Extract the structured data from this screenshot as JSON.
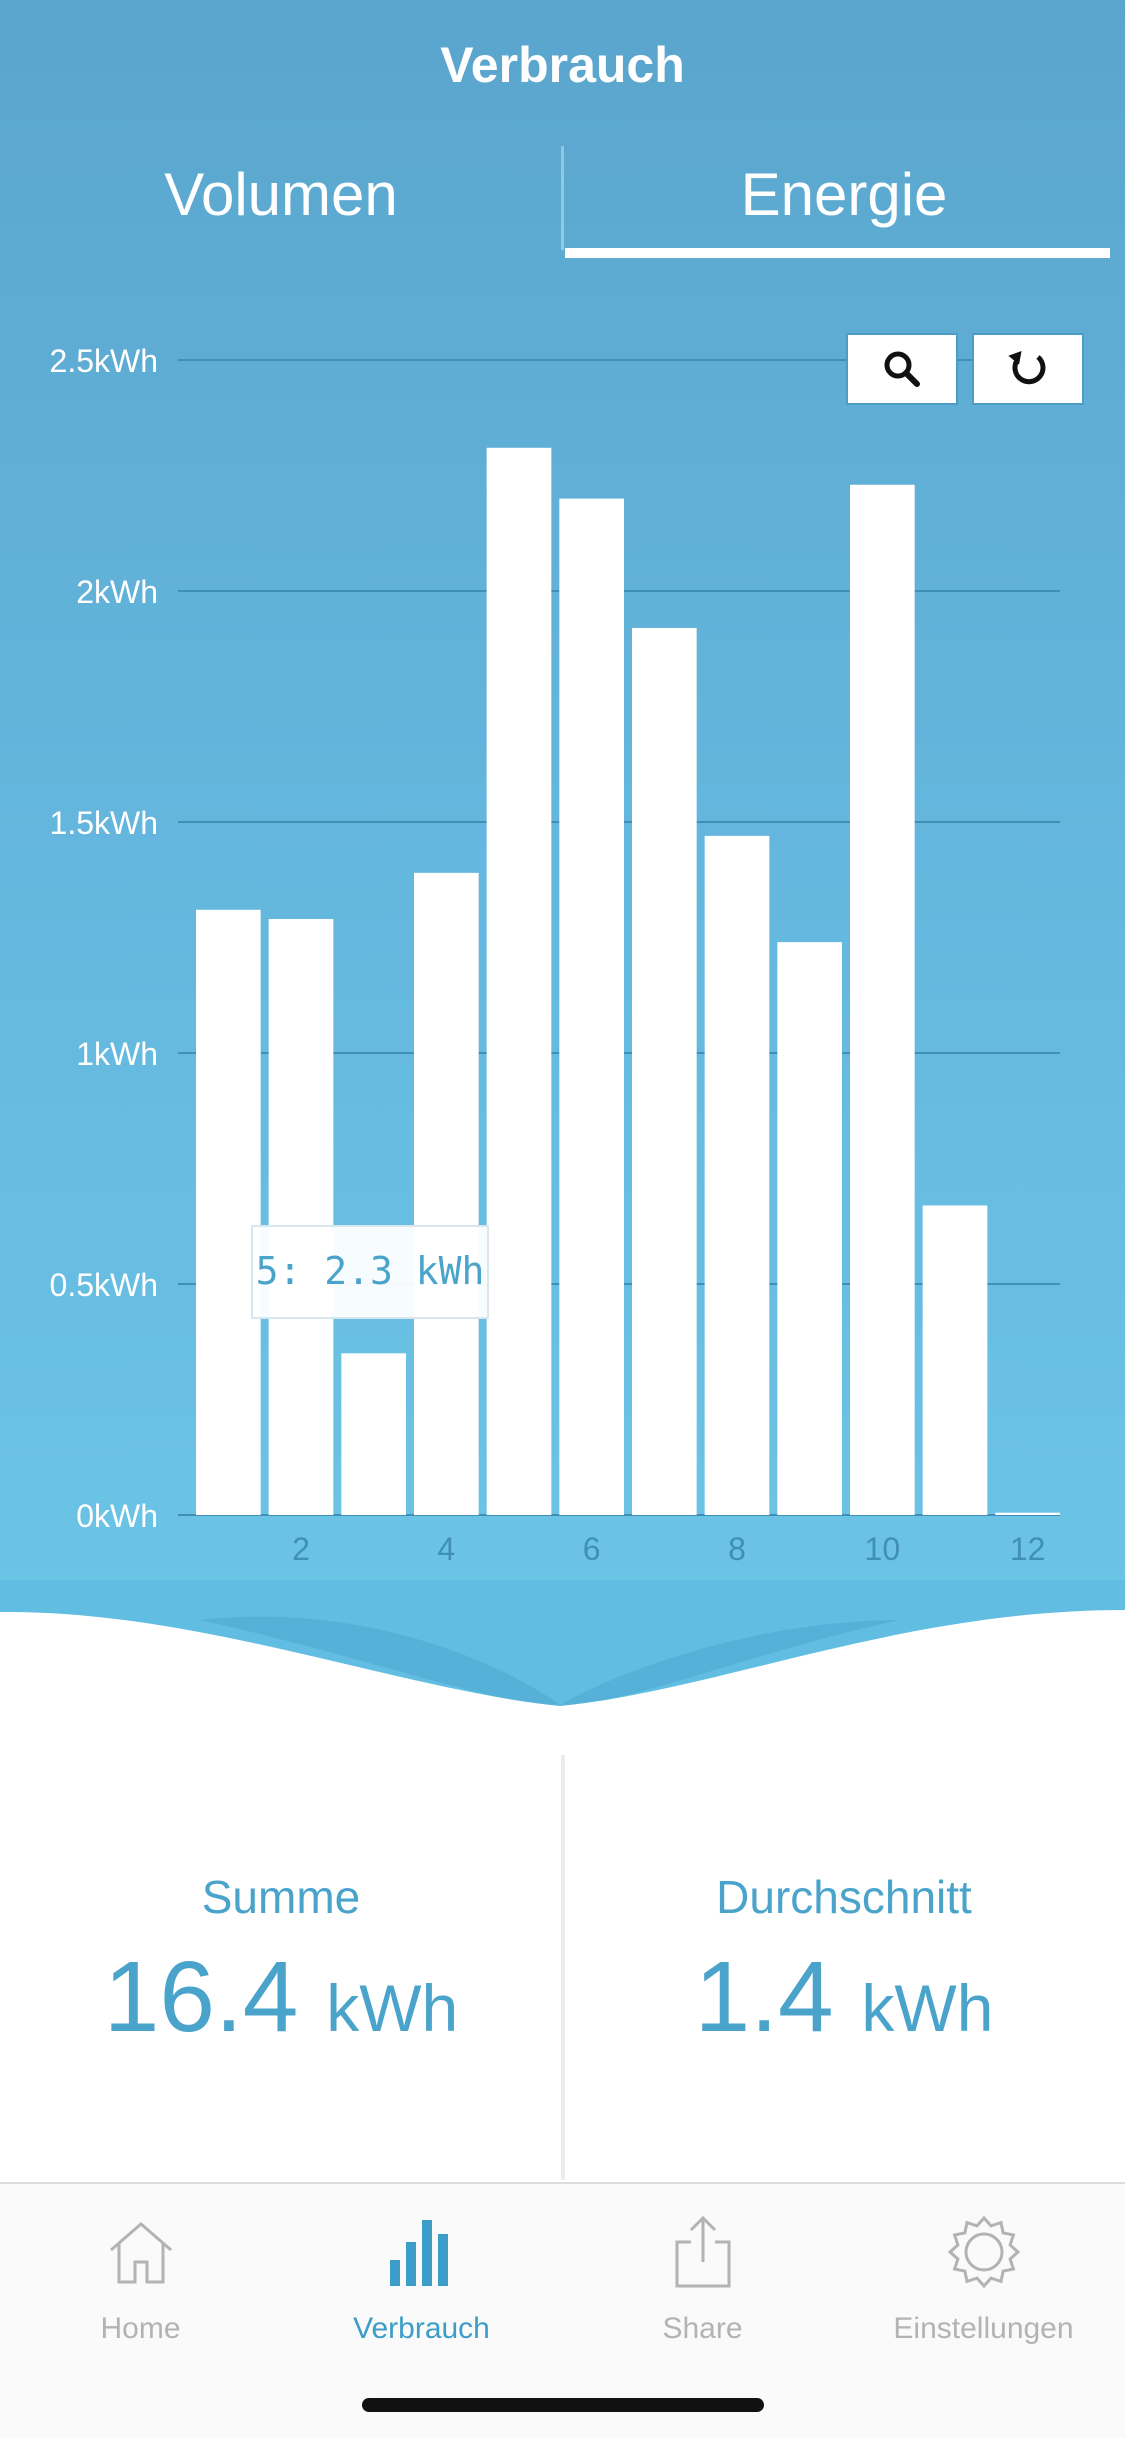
{
  "header": {
    "title": "Verbrauch"
  },
  "tabs": [
    {
      "label": "Volumen",
      "active": false
    },
    {
      "label": "Energie",
      "active": true
    }
  ],
  "controls": {
    "zoom_icon": "search-icon",
    "reset_icon": "refresh-icon"
  },
  "chart_data": {
    "type": "bar",
    "x": [
      1,
      2,
      3,
      4,
      5,
      6,
      7,
      8,
      9,
      10,
      11,
      12
    ],
    "values": [
      1.31,
      1.29,
      0.35,
      1.39,
      2.31,
      2.2,
      1.92,
      1.47,
      1.24,
      2.23,
      0.67,
      0.005
    ],
    "unit": "kWh",
    "ylim": [
      0,
      2.5
    ],
    "yticks": [
      0,
      0.5,
      1,
      1.5,
      2,
      2.5
    ],
    "ytick_labels": [
      "0kWh",
      "0.5kWh",
      "1kWh",
      "1.5kWh",
      "2kWh",
      "2.5kWh"
    ],
    "xticks": [
      2,
      4,
      6,
      8,
      10,
      12
    ],
    "xtick_labels": [
      "2",
      "4",
      "6",
      "8",
      "10",
      "12"
    ],
    "grid": true,
    "tooltip": "5: 2.3 kWh",
    "bar_color": "#ffffff",
    "grid_color": "#3f8fb8"
  },
  "summary": {
    "sum": {
      "label": "Summe",
      "value": "16.4",
      "unit": "kWh"
    },
    "avg": {
      "label": "Durchschnitt",
      "value": "1.4",
      "unit": "kWh"
    }
  },
  "tabbar": {
    "items": [
      {
        "label": "Home",
        "icon": "home-icon",
        "active": false
      },
      {
        "label": "Verbrauch",
        "icon": "bar-chart-icon",
        "active": true
      },
      {
        "label": "Share",
        "icon": "share-icon",
        "active": false
      },
      {
        "label": "Einstellungen",
        "icon": "gear-icon",
        "active": false
      }
    ]
  },
  "colors": {
    "accent": "#3c9dc8",
    "inactive": "#b3b3b3"
  }
}
